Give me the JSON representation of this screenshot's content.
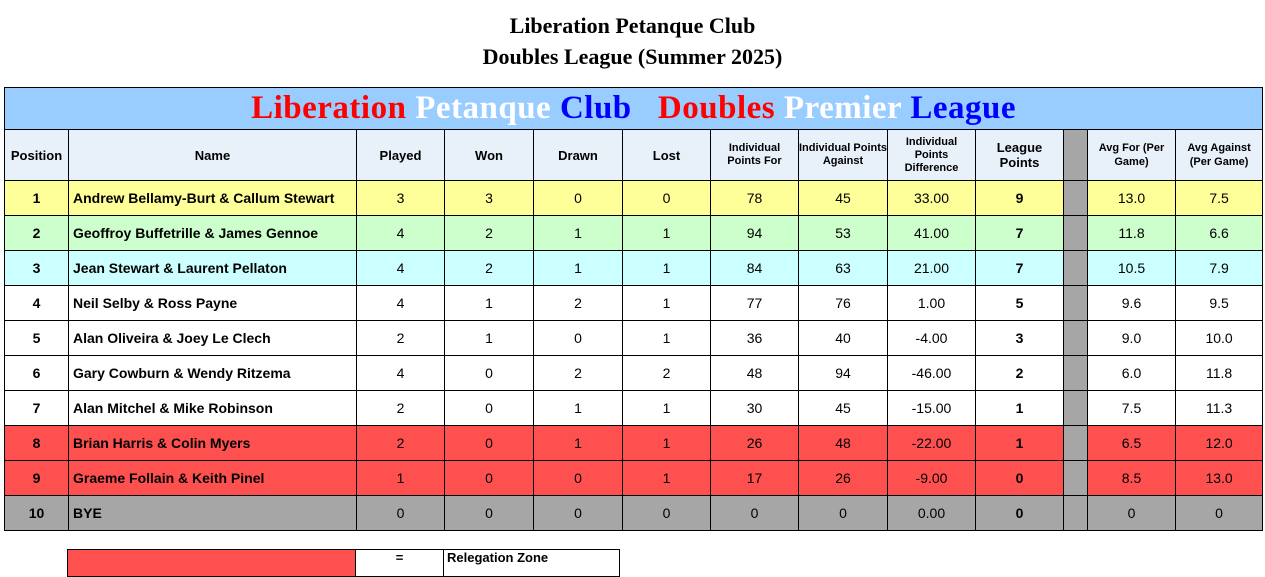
{
  "document": {
    "title_line1": "Liberation Petanque Club",
    "title_line2": "Doubles League (Summer 2025)"
  },
  "banner": {
    "words": [
      {
        "text": "Liberation",
        "color": "#ff0000"
      },
      {
        "text": "Petanque",
        "color": "#ffffff"
      },
      {
        "text": "Club",
        "color": "#0000ff"
      },
      {
        "text": "Doubles",
        "color": "#ff0000"
      },
      {
        "text": "Premier",
        "color": "#ffffff"
      },
      {
        "text": "League",
        "color": "#0000ff"
      }
    ],
    "background": "#99ccff"
  },
  "table": {
    "headers": {
      "position": "Position",
      "name": "Name",
      "played": "Played",
      "won": "Won",
      "drawn": "Drawn",
      "lost": "Lost",
      "points_for": "Individual Points For",
      "points_against": "Individual Points Against",
      "points_difference": "Individual Points Difference",
      "league_points": "League Points",
      "avg_for": "Avg For (Per Game)",
      "avg_against": "Avg Against (Per Game)"
    },
    "rows": [
      {
        "position": "1",
        "name": "Andrew Bellamy-Burt & Callum Stewart",
        "played": "3",
        "won": "3",
        "drawn": "0",
        "lost": "0",
        "points_for": "78",
        "points_against": "45",
        "difference": "33.00",
        "league_points": "9",
        "avg_for": "13.0",
        "avg_against": "7.5",
        "row_color": "#ffff99"
      },
      {
        "position": "2",
        "name": "Geoffroy Buffetrille & James Gennoe",
        "played": "4",
        "won": "2",
        "drawn": "1",
        "lost": "1",
        "points_for": "94",
        "points_against": "53",
        "difference": "41.00",
        "league_points": "7",
        "avg_for": "11.8",
        "avg_against": "6.6",
        "row_color": "#ccffcc"
      },
      {
        "position": "3",
        "name": "Jean Stewart & Laurent Pellaton",
        "played": "4",
        "won": "2",
        "drawn": "1",
        "lost": "1",
        "points_for": "84",
        "points_against": "63",
        "difference": "21.00",
        "league_points": "7",
        "avg_for": "10.5",
        "avg_against": "7.9",
        "row_color": "#ccffff"
      },
      {
        "position": "4",
        "name": "Neil Selby & Ross Payne",
        "played": "4",
        "won": "1",
        "drawn": "2",
        "lost": "1",
        "points_for": "77",
        "points_against": "76",
        "difference": "1.00",
        "league_points": "5",
        "avg_for": "9.6",
        "avg_against": "9.5",
        "row_color": "#ffffff"
      },
      {
        "position": "5",
        "name": "Alan Oliveira & Joey Le Clech",
        "played": "2",
        "won": "1",
        "drawn": "0",
        "lost": "1",
        "points_for": "36",
        "points_against": "40",
        "difference": "-4.00",
        "league_points": "3",
        "avg_for": "9.0",
        "avg_against": "10.0",
        "row_color": "#ffffff"
      },
      {
        "position": "6",
        "name": "Gary Cowburn & Wendy Ritzema",
        "played": "4",
        "won": "0",
        "drawn": "2",
        "lost": "2",
        "points_for": "48",
        "points_against": "94",
        "difference": "-46.00",
        "league_points": "2",
        "avg_for": "6.0",
        "avg_against": "11.8",
        "row_color": "#ffffff"
      },
      {
        "position": "7",
        "name": "Alan Mitchel & Mike Robinson",
        "played": "2",
        "won": "0",
        "drawn": "1",
        "lost": "1",
        "points_for": "30",
        "points_against": "45",
        "difference": "-15.00",
        "league_points": "1",
        "avg_for": "7.5",
        "avg_against": "11.3",
        "row_color": "#ffffff"
      },
      {
        "position": "8",
        "name": "Brian Harris & Colin Myers",
        "played": "2",
        "won": "0",
        "drawn": "1",
        "lost": "1",
        "points_for": "26",
        "points_against": "48",
        "difference": "-22.00",
        "league_points": "1",
        "avg_for": "6.5",
        "avg_against": "12.0",
        "row_color": "#ff5050"
      },
      {
        "position": "9",
        "name": "Graeme Follain & Keith Pinel",
        "played": "1",
        "won": "0",
        "drawn": "0",
        "lost": "1",
        "points_for": "17",
        "points_against": "26",
        "difference": "-9.00",
        "league_points": "0",
        "avg_for": "8.5",
        "avg_against": "13.0",
        "row_color": "#ff5050"
      },
      {
        "position": "10",
        "name": "BYE",
        "played": "0",
        "won": "0",
        "drawn": "0",
        "lost": "0",
        "points_for": "0",
        "points_against": "0",
        "difference": "0.00",
        "league_points": "0",
        "avg_for": "0",
        "avg_against": "0",
        "row_color": "#a6a6a6"
      }
    ]
  },
  "legend": {
    "swatch_color": "#ff5050",
    "equals": "=",
    "label": "Relegation  Zone"
  }
}
